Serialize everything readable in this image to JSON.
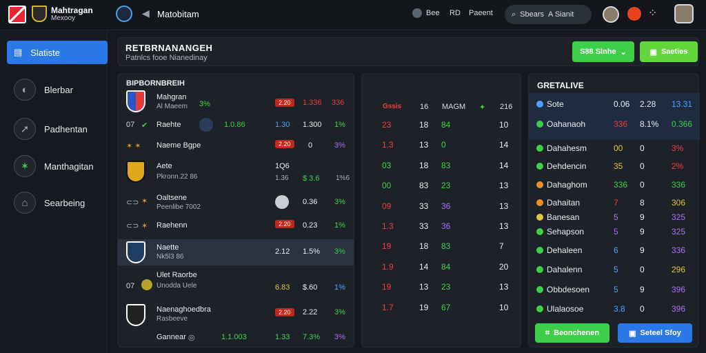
{
  "topbar": {
    "brand_line1": "Mahtragan",
    "brand_line2": "Mexooy",
    "title": "Matobitam",
    "link_bee": "Bee",
    "link_rd": "RD",
    "link_parent": "Paeent",
    "search_placeholder": "Sbears",
    "search_user": "A Sianit"
  },
  "sidebar": {
    "items": [
      {
        "label": "Slatiste"
      },
      {
        "label": "Blerbar"
      },
      {
        "label": "Padhentan"
      },
      {
        "label": "Manthagitan"
      },
      {
        "label": "Searbeing"
      }
    ]
  },
  "header": {
    "title": "RETBRNANANGEH",
    "subtitle": "Patnlcs fooe Nianedinay",
    "btn1": "S88 Slnhe",
    "btn2": "Saeties"
  },
  "left_panel": {
    "title": "BIPBORNBREIH",
    "rows": [
      {
        "name": "Mahgran",
        "sub": "Al Maeem",
        "pct": "3%",
        "chip": "2.20",
        "v1": "1.336",
        "v2": "336"
      },
      {
        "name": "Raehte",
        "sub": "",
        "v0": "1.0.86",
        "v1b": "1.30",
        "v1": "1.300",
        "v2": "1%"
      },
      {
        "name": "Naeme Bgpe",
        "sub": "",
        "chip": "2.20",
        "v1": "0",
        "v2": "3%"
      },
      {
        "name": "Aete",
        "sub": "Pkronn.22 86",
        "top": "1Q6",
        "v1": "1.36",
        "v1x": "$ 3.6",
        "v2": "1%6"
      },
      {
        "name": "Oaltsene",
        "sub": "Peenlibe 7002",
        "v1": "0.36",
        "v2": "3%"
      },
      {
        "name": "Raehenn",
        "sub": "",
        "chip": "2.20",
        "v1": "0.23",
        "v2": "1%"
      },
      {
        "name": "Naette",
        "sub": "Nk5l3 86",
        "v1b": "2.12",
        "v1": "1.5%",
        "v2": "3%"
      },
      {
        "name": "Ulet Raorbe",
        "sub": "Unodda Uele",
        "v1b": "6.83",
        "v1": "$.60",
        "v2": "1%"
      },
      {
        "name": "Naenaghoedbra",
        "sub": "Rasbeeve",
        "chip": "2.20",
        "v1": "2.22",
        "v2": "3%"
      },
      {
        "name": "Gannear",
        "sub": "",
        "v0": "1.1.003",
        "v1b": "1.33",
        "v1": "7.3%",
        "v2": "3%"
      }
    ]
  },
  "mid_panel": {
    "headers": [
      "Gssis",
      "16",
      "MAGM",
      "✦",
      "216"
    ],
    "rows": [
      [
        "23",
        "18",
        "84",
        "10"
      ],
      [
        "1.3",
        "13",
        "0",
        "14"
      ],
      [
        "03",
        "18",
        "83",
        "14"
      ],
      [
        "00",
        "83",
        "23",
        "13"
      ],
      [
        "09",
        "33",
        "36",
        "13"
      ],
      [
        "1.3",
        "33",
        "36",
        "13"
      ],
      [
        "19",
        "18",
        "83",
        "7"
      ],
      [
        "1.9",
        "14",
        "84",
        "20"
      ],
      [
        "19",
        "13",
        "23",
        "13"
      ],
      [
        "1.7",
        "19",
        "67",
        "10"
      ]
    ]
  },
  "right_panel": {
    "title": "GRETALIVE",
    "rows": [
      {
        "name": "Sote",
        "v1": "0.06",
        "v2": "2.28",
        "v3": "13.31"
      },
      {
        "name": "Oahanaoh",
        "v1": "336",
        "v2": "8.1%",
        "v3": "0.366"
      },
      {
        "name": "Dahahesm",
        "v1": "00",
        "v2": "0",
        "v3": "3%"
      },
      {
        "name": "Dehdencin",
        "v1": "35",
        "v2": "0",
        "v3": "2%"
      },
      {
        "name": "Dahaghom",
        "v1": "336",
        "v2": "0",
        "v3": "336"
      },
      {
        "name": "Dahaitan",
        "v1": "7",
        "v2": "8",
        "v3": "306"
      },
      {
        "name": "Banesan",
        "v1": "5",
        "v2": "9",
        "v3": "325"
      },
      {
        "name": "Sehapson",
        "v1": "5",
        "v2": "9",
        "v3": "325"
      },
      {
        "name": "Dehaleen",
        "v1": "6",
        "v2": "9",
        "v3": "336"
      },
      {
        "name": "Dahalenn",
        "v1": "5",
        "v2": "0",
        "v3": "296"
      },
      {
        "name": "Obbdesoen",
        "v1": "5",
        "v2": "9",
        "v3": "396"
      },
      {
        "name": "Ulalaosoe",
        "v1": "3.8",
        "v2": "0",
        "v3": "396"
      }
    ],
    "btn_left": "Beonchenen",
    "btn_right": "Seteel Sfoy"
  },
  "colors": {
    "accent": "#2b79e6",
    "green": "#3ecf4a",
    "red": "#ef3b3b"
  }
}
